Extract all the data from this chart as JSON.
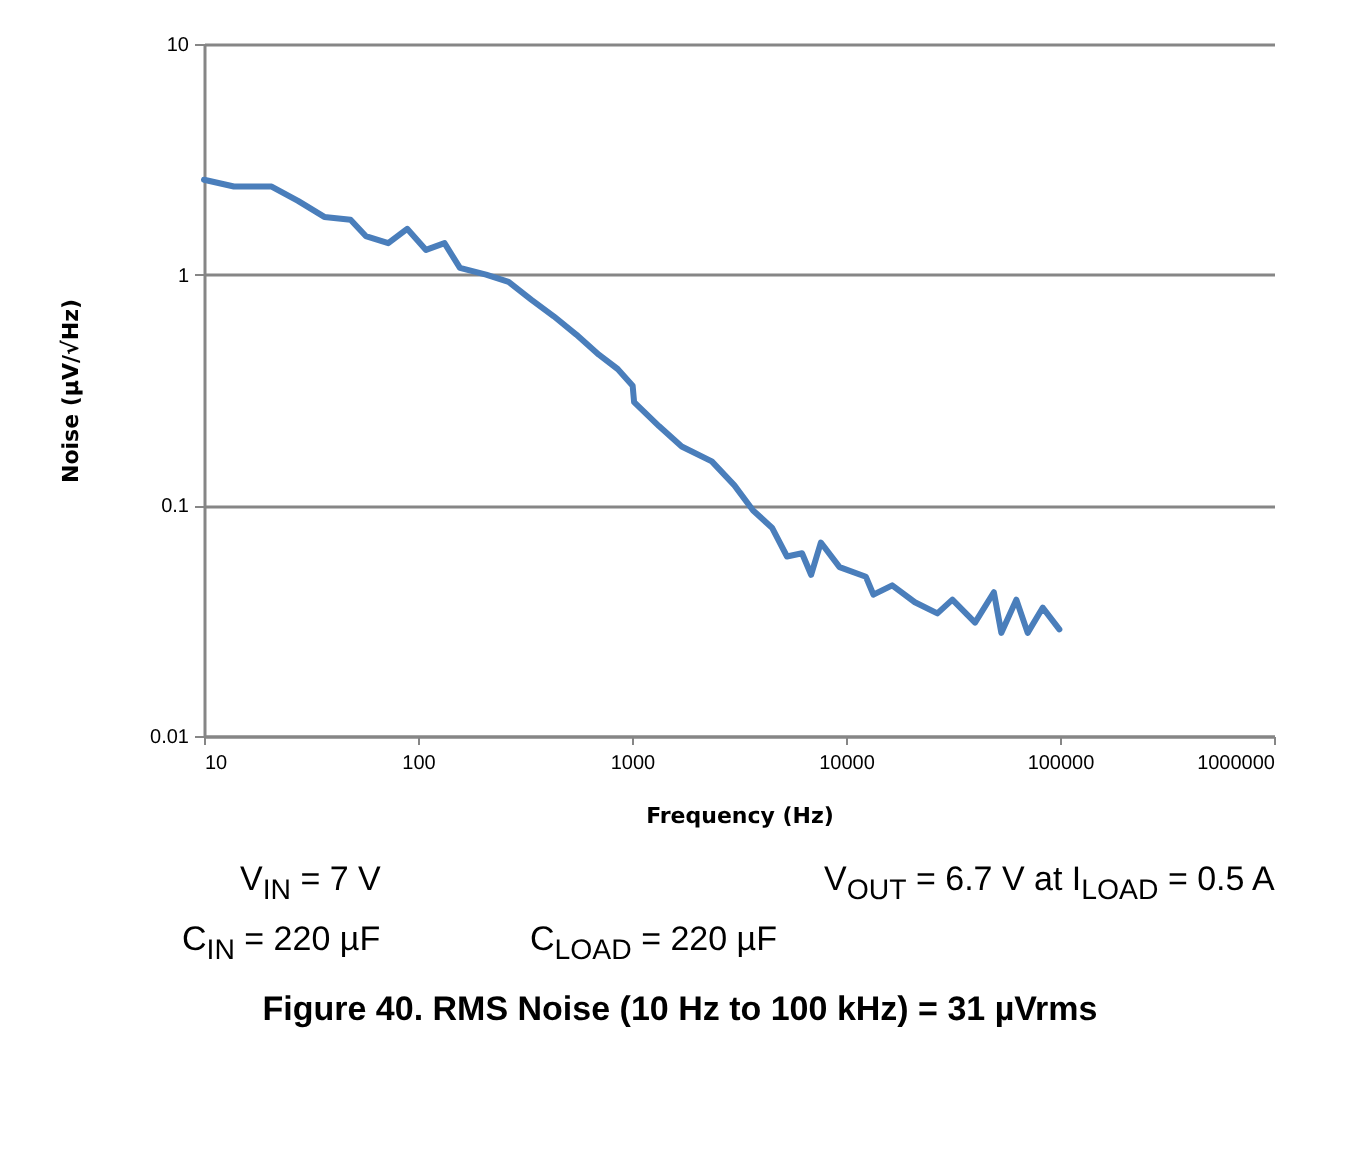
{
  "chart_data": {
    "type": "line",
    "title": "Figure 40. RMS Noise (10 Hz to 100 kHz) = 31 µVrms",
    "xlabel": "Frequency (Hz)",
    "ylabel": "Noise (µV/√Hz)",
    "annotations": [
      "V$_{IN}$ = 7 V",
      "V$_{OUT}$ = 6.7 V at I$_{LOAD}$ = 0.5 A",
      "C$_{IN}$ = 220 µF",
      "C$_{LOAD}$ = 220 µF"
    ],
    "log": "xy",
    "grid": "y",
    "marker": "none",
    "line_style": "solid",
    "xlim": [
      10,
      1000000
    ],
    "xticks": [
      10,
      100,
      1000,
      10000,
      100000,
      1000000
    ],
    "ylim": [
      0.01,
      10
    ],
    "yticks": [
      0.01,
      0.1,
      1,
      10
    ],
    "series": [
      {
        "color": "#4a7ebb",
        "x": [
          10,
          13.8,
          20.7,
          27.5,
          36.5,
          48.4,
          57,
          72.6,
          89,
          109,
          133,
          157,
          208,
          265,
          338,
          431,
          549,
          700,
          857,
          1007,
          1023,
          1340,
          1707,
          2360,
          3010,
          3680,
          4510,
          5300,
          6230,
          6870,
          7630,
          9330,
          12390,
          13430,
          16440,
          20980,
          26730,
          31410,
          40090,
          49090,
          53210,
          62520,
          70630,
          82990,
          99300
        ],
        "values": [
          2.58,
          2.41,
          2.41,
          2.09,
          1.78,
          1.73,
          1.47,
          1.37,
          1.58,
          1.28,
          1.37,
          1.07,
          1.0,
          0.93,
          0.78,
          0.66,
          0.55,
          0.45,
          0.39,
          0.33,
          0.28,
          0.22,
          0.18,
          0.155,
          0.122,
          0.095,
          0.08,
          0.06,
          0.062,
          0.05,
          0.069,
          0.054,
          0.049,
          0.041,
          0.045,
          0.038,
          0.034,
          0.039,
          0.031,
          0.042,
          0.028,
          0.039,
          0.028,
          0.036,
          0.029
        ]
      }
    ]
  }
}
